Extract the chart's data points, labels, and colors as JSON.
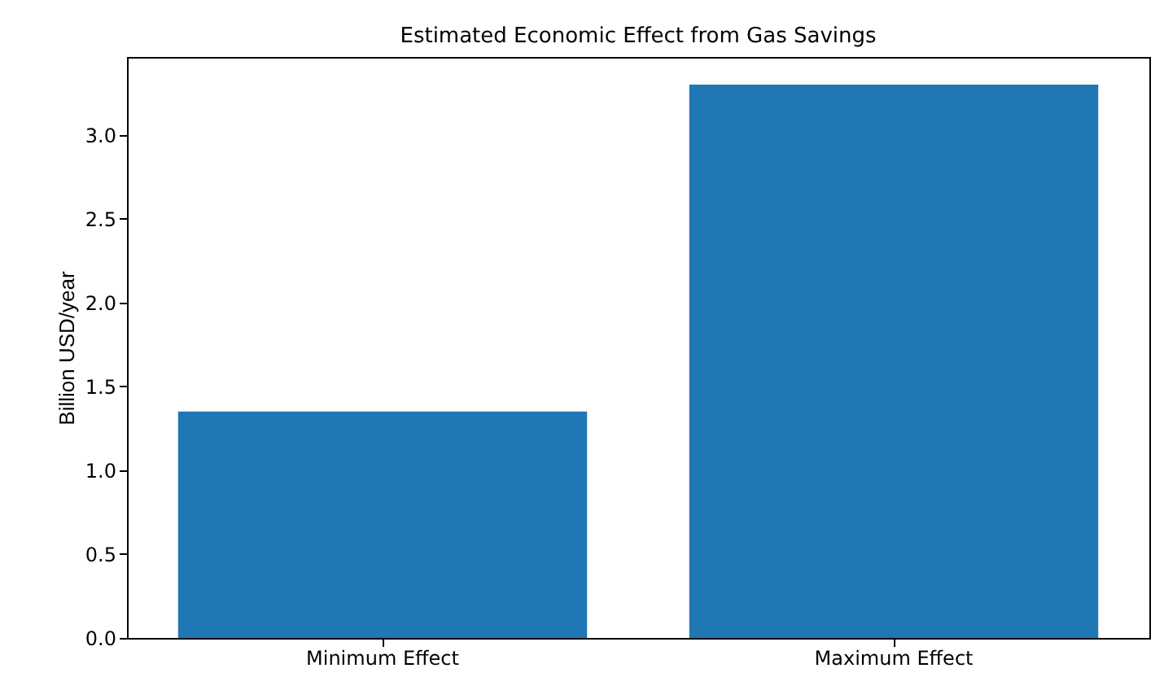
{
  "chart_data": {
    "type": "bar",
    "title": "Estimated Economic Effect from Gas Savings",
    "ylabel": "Billion USD/year",
    "categories": [
      "Minimum Effect",
      "Maximum Effect"
    ],
    "values": [
      1.35,
      3.3
    ],
    "color": "#1f77b4",
    "ylim": [
      0,
      3.465
    ],
    "yticks": [
      {
        "value": 0,
        "label": "0.0"
      },
      0.5,
      {
        "value": 1,
        "label": "1.0"
      },
      1.5,
      {
        "value": 2,
        "label": "2.0"
      },
      2.5,
      {
        "value": 3,
        "label": "3.0"
      }
    ],
    "grid": false
  }
}
